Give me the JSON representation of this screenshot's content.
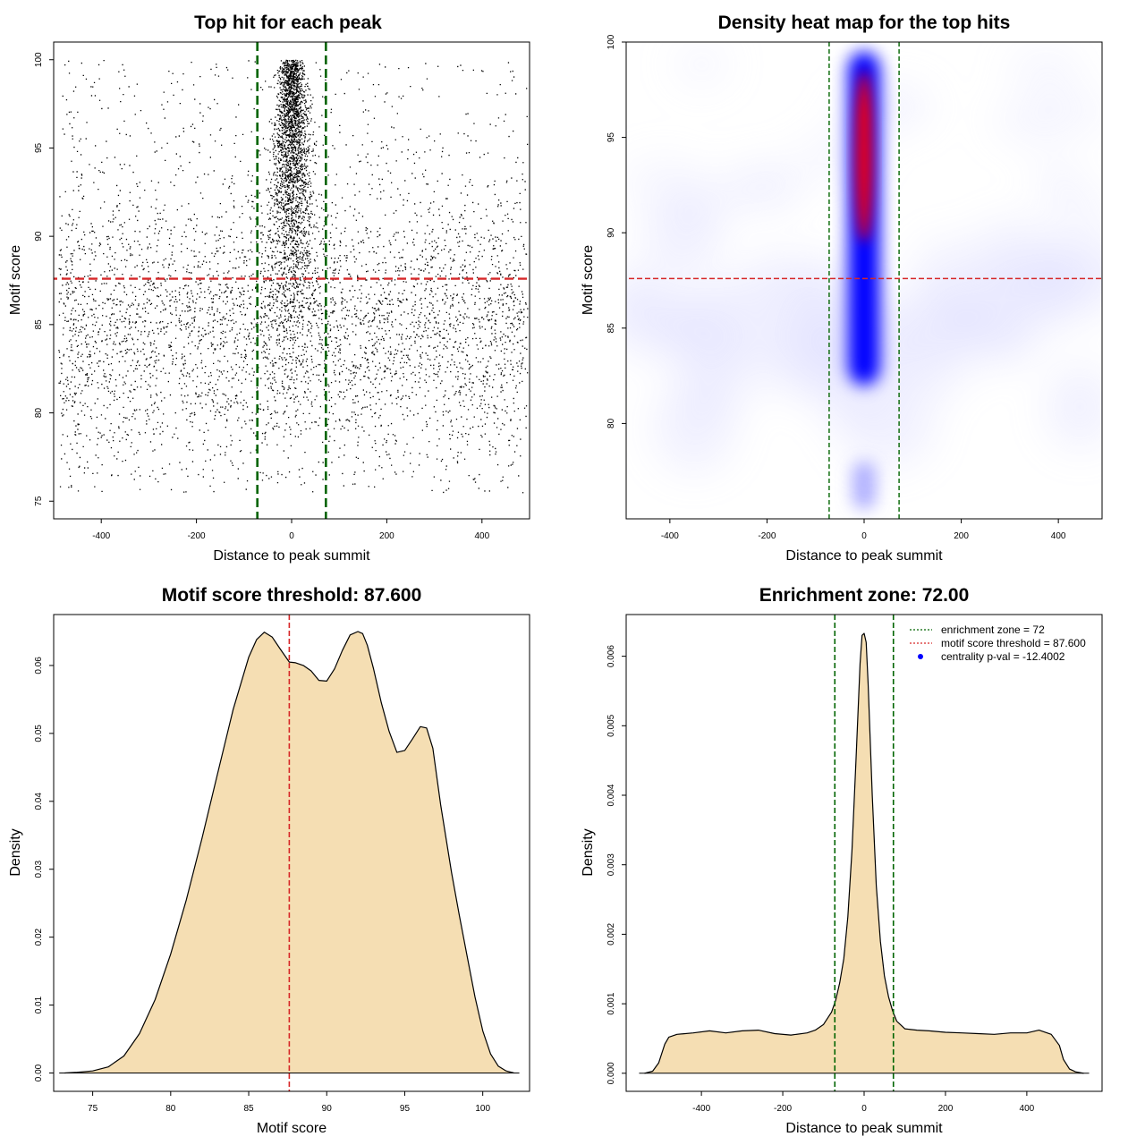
{
  "chart_data": [
    {
      "type": "scatter",
      "title": "Top hit for each peak",
      "xlabel": "Distance to peak summit",
      "ylabel": "Motif score",
      "xlim": [
        -500,
        500
      ],
      "ylim": [
        74,
        101
      ],
      "xticks": [
        -400,
        -200,
        0,
        200,
        400
      ],
      "yticks": [
        75,
        80,
        85,
        90,
        95,
        100
      ],
      "vlines": [
        -72,
        72
      ],
      "hline": 87.6,
      "point_color": "#000000",
      "vline_color": "#006400",
      "hline_color": "#d62728",
      "background_points": {
        "x_range": [
          -490,
          495
        ],
        "y_range": [
          75.5,
          100
        ],
        "y_mode": 85
      },
      "central_cluster": {
        "x_center": 0,
        "x_spread": 22,
        "y_range": [
          78,
          100
        ]
      }
    },
    {
      "type": "heatmap",
      "title": "Density heat map for the top hits",
      "xlabel": "Distance to peak summit",
      "ylabel": "Motif score",
      "xlim": [
        -490,
        490
      ],
      "ylim": [
        75,
        100
      ],
      "xticks": [
        -400,
        -200,
        0,
        200,
        400
      ],
      "yticks": [
        80,
        85,
        90,
        95,
        100
      ],
      "vlines": [
        -72,
        72
      ],
      "hline": 87.6,
      "colorscale": [
        "#ffffff",
        "#0000ff",
        "#ff0000"
      ],
      "hotspot": {
        "x": 0,
        "y": 94,
        "x_width": 30,
        "y_range": [
          82,
          99.5
        ]
      },
      "background_band": {
        "y_center": 85,
        "intensity": "low"
      }
    },
    {
      "type": "area",
      "title": "Motif score threshold: 87.600",
      "xlabel": "Motif score",
      "ylabel": "Density",
      "xlim": [
        72.5,
        103
      ],
      "ylim": [
        -0.0027,
        0.0675
      ],
      "xticks": [
        75,
        80,
        85,
        90,
        95,
        100
      ],
      "yticks": [
        0,
        0.01,
        0.02,
        0.03,
        0.04,
        0.05,
        0.06
      ],
      "ytick_labels": [
        "0.00",
        "0.01",
        "0.02",
        "0.03",
        "0.04",
        "0.05",
        "0.06"
      ],
      "fill_color": "#f5deb3",
      "threshold": 87.6,
      "threshold_color": "#d62728",
      "x": [
        73.2,
        74,
        75,
        76,
        77,
        78,
        79,
        80,
        81,
        82,
        83,
        84,
        85,
        85.5,
        86,
        86.5,
        87,
        87.6,
        88,
        88.5,
        89,
        89.5,
        90,
        90.5,
        91,
        91.5,
        92,
        92.3,
        92.6,
        93,
        93.5,
        94,
        94.5,
        95,
        95.5,
        96,
        96.4,
        96.8,
        97.3,
        98,
        98.5,
        99,
        99.5,
        100,
        100.5,
        101,
        101.5,
        102
      ],
      "y": [
        0,
        0.0001,
        0.0003,
        0.0009,
        0.0025,
        0.0058,
        0.0108,
        0.0175,
        0.0255,
        0.0345,
        0.044,
        0.0535,
        0.0612,
        0.0638,
        0.0649,
        0.0642,
        0.0625,
        0.0605,
        0.0604,
        0.06,
        0.0592,
        0.0578,
        0.0577,
        0.0595,
        0.0622,
        0.0645,
        0.065,
        0.0647,
        0.063,
        0.0595,
        0.0545,
        0.0503,
        0.0472,
        0.0475,
        0.0492,
        0.051,
        0.0508,
        0.0478,
        0.0395,
        0.0295,
        0.0232,
        0.0172,
        0.0112,
        0.0062,
        0.0028,
        0.001,
        0.0003,
        0
      ]
    },
    {
      "type": "area",
      "title": "Enrichment zone: 72.00",
      "xlabel": "Distance to peak summit",
      "ylabel": "Density",
      "xlim": [
        -585,
        585
      ],
      "ylim": [
        -0.00026,
        0.0066
      ],
      "xticks": [
        -400,
        -200,
        0,
        200,
        400
      ],
      "yticks": [
        0,
        0.001,
        0.002,
        0.003,
        0.004,
        0.005,
        0.006
      ],
      "ytick_labels": [
        "0.000",
        "0.001",
        "0.002",
        "0.003",
        "0.004",
        "0.005",
        "0.006"
      ],
      "fill_color": "#f5deb3",
      "vlines": [
        -72,
        72
      ],
      "vline_color": "#006400",
      "x": [
        -540,
        -520,
        -505,
        -490,
        -480,
        -460,
        -420,
        -380,
        -340,
        -300,
        -260,
        -220,
        -180,
        -140,
        -120,
        -100,
        -80,
        -70,
        -60,
        -50,
        -40,
        -30,
        -20,
        -10,
        -5,
        0,
        5,
        10,
        20,
        30,
        40,
        50,
        60,
        70,
        80,
        100,
        130,
        160,
        200,
        240,
        280,
        320,
        360,
        400,
        430,
        460,
        480,
        490,
        505,
        520,
        540
      ],
      "y": [
        0,
        3e-05,
        0.00015,
        0.00042,
        0.00052,
        0.00056,
        0.00058,
        0.00061,
        0.00058,
        0.00061,
        0.00062,
        0.00057,
        0.00055,
        0.00058,
        0.00062,
        0.0007,
        0.00088,
        0.00105,
        0.0013,
        0.00165,
        0.00225,
        0.0032,
        0.0045,
        0.0059,
        0.0063,
        0.00633,
        0.0062,
        0.0056,
        0.004,
        0.0027,
        0.0019,
        0.0014,
        0.0011,
        0.0009,
        0.00075,
        0.00064,
        0.00062,
        0.00061,
        0.00059,
        0.00058,
        0.00057,
        0.00056,
        0.00058,
        0.00058,
        0.00062,
        0.00056,
        0.0004,
        0.0002,
        6e-05,
        2e-05,
        0
      ],
      "legend": [
        {
          "label": "enrichment zone = 72",
          "color": "#006400",
          "style": "dotted-line"
        },
        {
          "label": "motif score threshold = 87.600",
          "color": "#d62728",
          "style": "dotted-line"
        },
        {
          "label": "centrality p-val = -12.4002",
          "color": "#0000ff",
          "style": "point"
        }
      ],
      "legend_position": "top-right"
    }
  ]
}
